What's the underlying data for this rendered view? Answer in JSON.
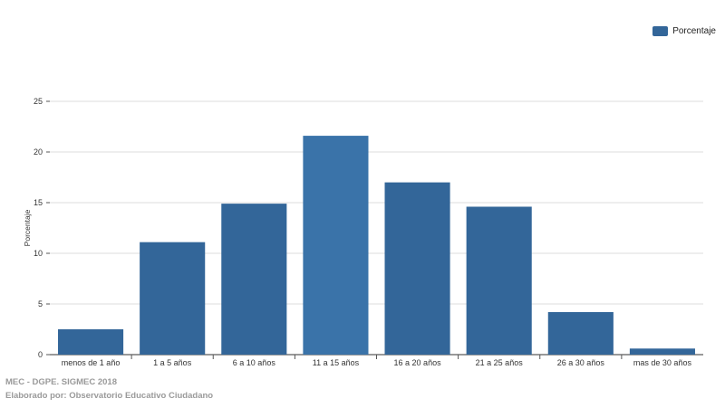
{
  "legend": {
    "label": "Porcentaje",
    "color": "#336699"
  },
  "footer": {
    "line1": "MEC - DGPE. SIGMEC 2018",
    "line2": "Elaborado por: Observatorio Educativo Ciudadano"
  },
  "chart_data": {
    "type": "bar",
    "categories": [
      "menos de 1 año",
      "1 a 5 años",
      "6 a 10 años",
      "11 a 15 años",
      "16 a 20 años",
      "21 a 25 años",
      "26 a 30 años",
      "mas de 30 años"
    ],
    "series": [
      {
        "name": "Porcentaje",
        "values": [
          2.5,
          11.1,
          14.9,
          21.6,
          17.0,
          14.6,
          4.2,
          0.6
        ]
      }
    ],
    "ylabel": "Porcentaje",
    "xlabel": "",
    "ylim": [
      0,
      25
    ],
    "yticks": [
      0,
      5,
      10,
      15,
      20,
      25
    ],
    "grid": true,
    "legend_position": "top-right",
    "bar_color": "#336699",
    "highlight_color": "#3a73a9",
    "highlight_index": 3
  }
}
